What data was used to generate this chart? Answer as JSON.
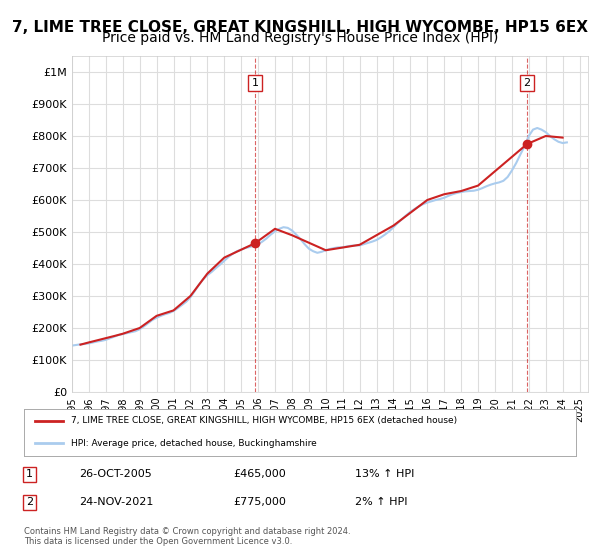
{
  "title": "7, LIME TREE CLOSE, GREAT KINGSHILL, HIGH WYCOMBE, HP15 6EX",
  "subtitle": "Price paid vs. HM Land Registry's House Price Index (HPI)",
  "title_fontsize": 11,
  "subtitle_fontsize": 10,
  "hpi_color": "#aaccee",
  "price_color": "#cc2222",
  "background_color": "#ffffff",
  "grid_color": "#dddddd",
  "ylim": [
    0,
    1050000
  ],
  "yticks": [
    0,
    100000,
    200000,
    300000,
    400000,
    500000,
    600000,
    700000,
    800000,
    900000,
    1000000
  ],
  "ytick_labels": [
    "£0",
    "£100K",
    "£200K",
    "£300K",
    "£400K",
    "£500K",
    "£600K",
    "£700K",
    "£800K",
    "£900K",
    "£1M"
  ],
  "sale1_date": 2005.82,
  "sale1_price": 465000,
  "sale2_date": 2021.9,
  "sale2_price": 775000,
  "sale1_label": "1",
  "sale2_label": "2",
  "legend_line1": "7, LIME TREE CLOSE, GREAT KINGSHILL, HIGH WYCOMBE, HP15 6EX (detached house)",
  "legend_line2": "HPI: Average price, detached house, Buckinghamshire",
  "table_row1": [
    "1",
    "26-OCT-2005",
    "£465,000",
    "13% ↑ HPI"
  ],
  "table_row2": [
    "2",
    "24-NOV-2021",
    "£775,000",
    "2% ↑ HPI"
  ],
  "footnote": "Contains HM Land Registry data © Crown copyright and database right 2024.\nThis data is licensed under the Open Government Licence v3.0.",
  "hpi_years": [
    1995.0,
    1995.25,
    1995.5,
    1995.75,
    1996.0,
    1996.25,
    1996.5,
    1996.75,
    1997.0,
    1997.25,
    1997.5,
    1997.75,
    1998.0,
    1998.25,
    1998.5,
    1998.75,
    1999.0,
    1999.25,
    1999.5,
    1999.75,
    2000.0,
    2000.25,
    2000.5,
    2000.75,
    2001.0,
    2001.25,
    2001.5,
    2001.75,
    2002.0,
    2002.25,
    2002.5,
    2002.75,
    2003.0,
    2003.25,
    2003.5,
    2003.75,
    2004.0,
    2004.25,
    2004.5,
    2004.75,
    2005.0,
    2005.25,
    2005.5,
    2005.75,
    2006.0,
    2006.25,
    2006.5,
    2006.75,
    2007.0,
    2007.25,
    2007.5,
    2007.75,
    2008.0,
    2008.25,
    2008.5,
    2008.75,
    2009.0,
    2009.25,
    2009.5,
    2009.75,
    2010.0,
    2010.25,
    2010.5,
    2010.75,
    2011.0,
    2011.25,
    2011.5,
    2011.75,
    2012.0,
    2012.25,
    2012.5,
    2012.75,
    2013.0,
    2013.25,
    2013.5,
    2013.75,
    2014.0,
    2014.25,
    2014.5,
    2014.75,
    2015.0,
    2015.25,
    2015.5,
    2015.75,
    2016.0,
    2016.25,
    2016.5,
    2016.75,
    2017.0,
    2017.25,
    2017.5,
    2017.75,
    2018.0,
    2018.25,
    2018.5,
    2018.75,
    2019.0,
    2019.25,
    2019.5,
    2019.75,
    2020.0,
    2020.25,
    2020.5,
    2020.75,
    2021.0,
    2021.25,
    2021.5,
    2021.75,
    2022.0,
    2022.25,
    2022.5,
    2022.75,
    2023.0,
    2023.25,
    2023.5,
    2023.75,
    2024.0,
    2024.25
  ],
  "hpi_values": [
    145000,
    147000,
    149000,
    150000,
    152000,
    155000,
    158000,
    160000,
    163000,
    168000,
    173000,
    178000,
    181000,
    184000,
    187000,
    190000,
    196000,
    205000,
    215000,
    225000,
    232000,
    238000,
    243000,
    247000,
    253000,
    262000,
    272000,
    282000,
    296000,
    315000,
    335000,
    352000,
    365000,
    375000,
    387000,
    398000,
    410000,
    422000,
    432000,
    440000,
    445000,
    450000,
    453000,
    457000,
    462000,
    470000,
    480000,
    492000,
    502000,
    510000,
    515000,
    513000,
    505000,
    492000,
    478000,
    462000,
    448000,
    440000,
    435000,
    438000,
    443000,
    447000,
    450000,
    452000,
    452000,
    455000,
    457000,
    458000,
    458000,
    462000,
    466000,
    470000,
    475000,
    483000,
    492000,
    502000,
    515000,
    528000,
    540000,
    552000,
    563000,
    572000,
    580000,
    587000,
    592000,
    596000,
    600000,
    603000,
    607000,
    613000,
    618000,
    622000,
    625000,
    627000,
    628000,
    629000,
    632000,
    637000,
    643000,
    648000,
    652000,
    655000,
    660000,
    672000,
    692000,
    715000,
    742000,
    768000,
    800000,
    820000,
    825000,
    820000,
    812000,
    800000,
    790000,
    782000,
    778000,
    780000
  ],
  "price_years": [
    1995.5,
    1996.0,
    1997.5,
    1998.0,
    1999.0,
    2000.0,
    2001.0,
    2002.0,
    2003.0,
    2004.0,
    2005.82,
    2007.0,
    2008.0,
    2010.0,
    2012.0,
    2014.0,
    2016.0,
    2017.0,
    2018.0,
    2019.0,
    2021.9,
    2023.0,
    2024.0
  ],
  "price_values": [
    148000,
    155000,
    175000,
    182000,
    200000,
    238000,
    255000,
    300000,
    370000,
    420000,
    465000,
    510000,
    490000,
    443000,
    460000,
    520000,
    600000,
    618000,
    628000,
    645000,
    775000,
    800000,
    795000
  ]
}
